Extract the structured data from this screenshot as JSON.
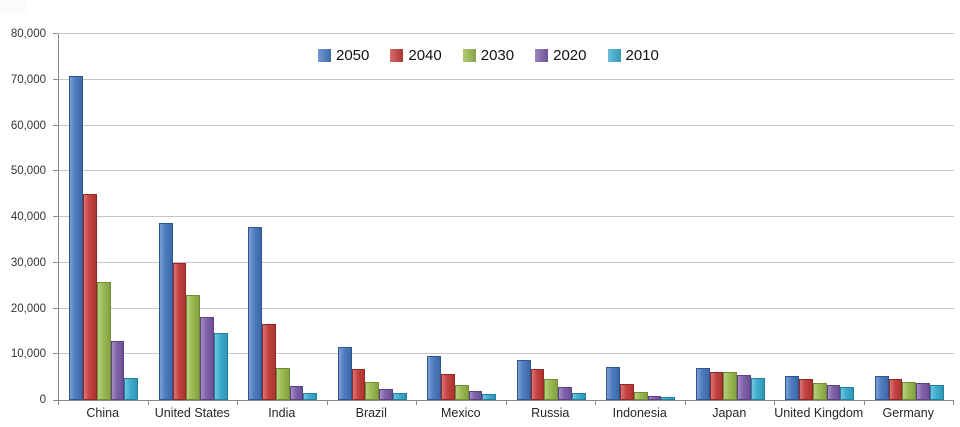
{
  "chart_data": {
    "type": "bar",
    "title": "",
    "xlabel": "",
    "ylabel": "",
    "categories": [
      "China",
      "United States",
      "India",
      "Brazil",
      "Mexico",
      "Russia",
      "Indonesia",
      "Japan",
      "United Kingdom",
      "Germany"
    ],
    "series": [
      {
        "name": "2050",
        "color": "#4677bf",
        "border_color": "#2f5591",
        "values": [
          70700,
          38500,
          37700,
          11400,
          9300,
          8600,
          7000,
          6700,
          5100,
          5000
        ]
      },
      {
        "name": "2040",
        "color": "#c33c39",
        "border_color": "#922927",
        "values": [
          44900,
          29800,
          16500,
          6600,
          5500,
          6500,
          3300,
          6000,
          4350,
          4400
        ]
      },
      {
        "name": "2030",
        "color": "#96b84c",
        "border_color": "#6f8c34",
        "values": [
          25500,
          22800,
          6700,
          3700,
          3100,
          4300,
          1500,
          5800,
          3600,
          3800
        ]
      },
      {
        "name": "2020",
        "color": "#7c5ca8",
        "border_color": "#5b4280",
        "values": [
          12600,
          18000,
          2850,
          2200,
          1750,
          2550,
          750,
          5200,
          3100,
          3500
        ]
      },
      {
        "name": "2010",
        "color": "#38aace",
        "border_color": "#25809e",
        "values": [
          4600,
          14500,
          1250,
          1350,
          1000,
          1400,
          420,
          4600,
          2550,
          3100
        ]
      }
    ],
    "ylim": [
      0,
      80000
    ],
    "ytick_step": 10000,
    "ytick_labels": [
      "0",
      "10,000",
      "20,000",
      "30,000",
      "40,000",
      "50,000",
      "60,000",
      "70,000",
      "80,000"
    ],
    "grid": "horizontal",
    "legend_position": "top-center"
  }
}
